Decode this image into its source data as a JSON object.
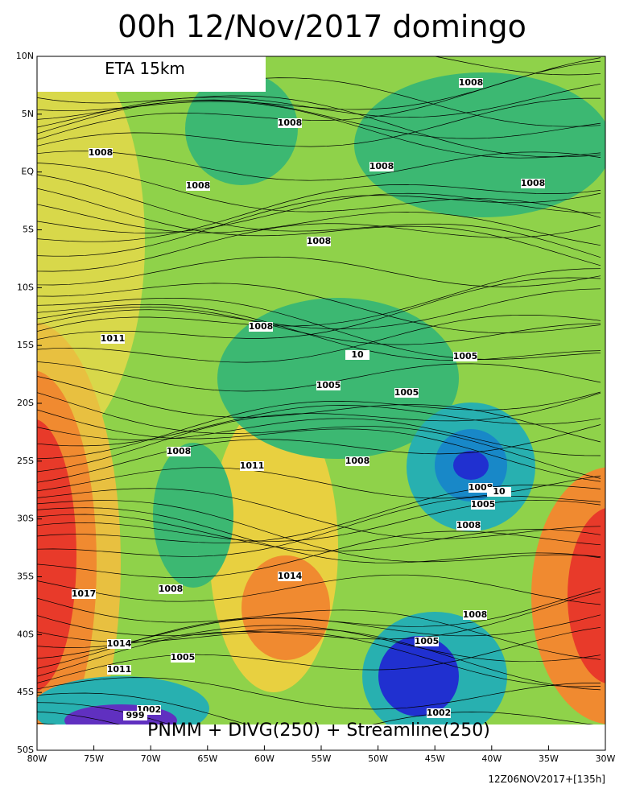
{
  "header": {
    "title": "00h 12/Nov/2017 domingo",
    "model": "ETA 15km"
  },
  "caption": "PNMM + DIVG(250) + Streamline(250)",
  "footer": "12Z06NOV2017+[135h]",
  "lat_labels": [
    "10N",
    "5N",
    "EQ",
    "5S",
    "10S",
    "15S",
    "20S",
    "25S",
    "30S",
    "35S",
    "40S",
    "45S",
    "50S"
  ],
  "lon_labels": [
    "80W",
    "75W",
    "70W",
    "65W",
    "60W",
    "55W",
    "50W",
    "45W",
    "40W",
    "35W",
    "30W"
  ],
  "isobar_labels": [
    "1008",
    "1008",
    "1008",
    "1008",
    "1008",
    "1008",
    "1008",
    "1011",
    "1008",
    "10",
    "1005",
    "1005",
    "1005",
    "1008",
    "1011",
    "1008",
    "1008",
    "10",
    "1005",
    "1008",
    "1014",
    "1008",
    "1017",
    "1008",
    "1005",
    "1014",
    "1005",
    "1011",
    "1002",
    "1002",
    "999"
  ]
}
